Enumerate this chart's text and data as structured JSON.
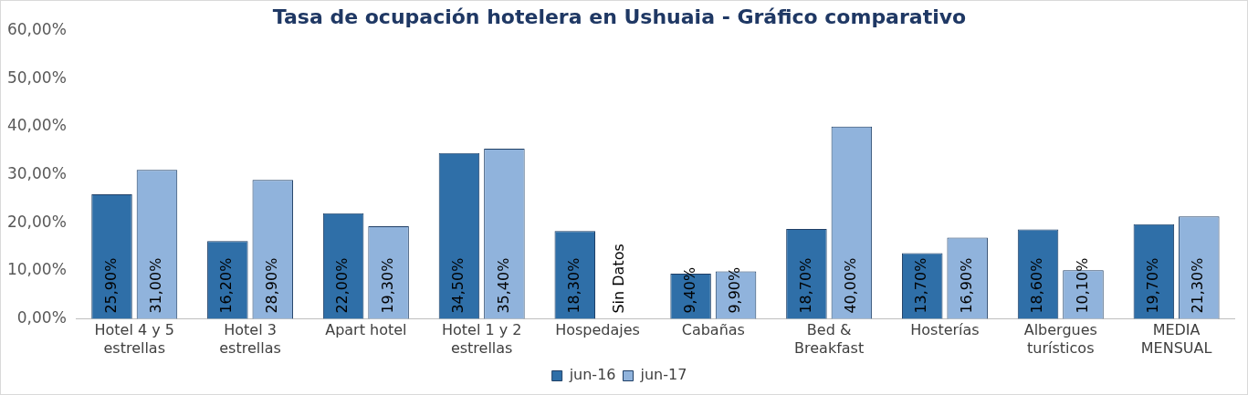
{
  "chart_data": {
    "type": "bar",
    "title": "Tasa de ocupación hotelera en Ushuaia - Gráfico comparativo",
    "categories": [
      "Hotel 4 y 5 estrellas",
      "Hotel 3 estrellas",
      "Apart hotel",
      "Hotel 1 y 2 estrellas",
      "Hospedajes",
      "Cabañas",
      "Bed & Breakfast",
      "Hosterías",
      "Albergues turísticos",
      "MEDIA MENSUAL"
    ],
    "series": [
      {
        "name": "jun-16",
        "color": "#2f6fa8",
        "values": [
          25.9,
          16.2,
          22.0,
          34.5,
          18.3,
          9.4,
          18.7,
          13.7,
          18.6,
          19.7
        ],
        "value_labels": [
          "25,90%",
          "16,20%",
          "22,00%",
          "34,50%",
          "18,30%",
          "9,40%",
          "18,70%",
          "13,70%",
          "18,60%",
          "19,70%"
        ]
      },
      {
        "name": "jun-17",
        "color": "#90b3dc",
        "values": [
          31.0,
          28.9,
          19.3,
          35.4,
          null,
          9.9,
          40.0,
          16.9,
          10.1,
          21.3
        ],
        "value_labels": [
          "31,00%",
          "28,90%",
          "19,30%",
          "35,40%",
          "Sin Datos",
          "9,90%",
          "40,00%",
          "16,90%",
          "10,10%",
          "21,30%"
        ]
      }
    ],
    "ylim": [
      0,
      60
    ],
    "yticks": [
      {
        "value": 0,
        "label": "0,00%"
      },
      {
        "value": 10,
        "label": "10,00%"
      },
      {
        "value": 20,
        "label": "20,00%"
      },
      {
        "value": 30,
        "label": "30,00%"
      },
      {
        "value": 40,
        "label": "40,00%"
      },
      {
        "value": 50,
        "label": "50,00%"
      },
      {
        "value": 60,
        "label": "60,00%"
      }
    ],
    "grid": false,
    "legend": "bottom"
  }
}
